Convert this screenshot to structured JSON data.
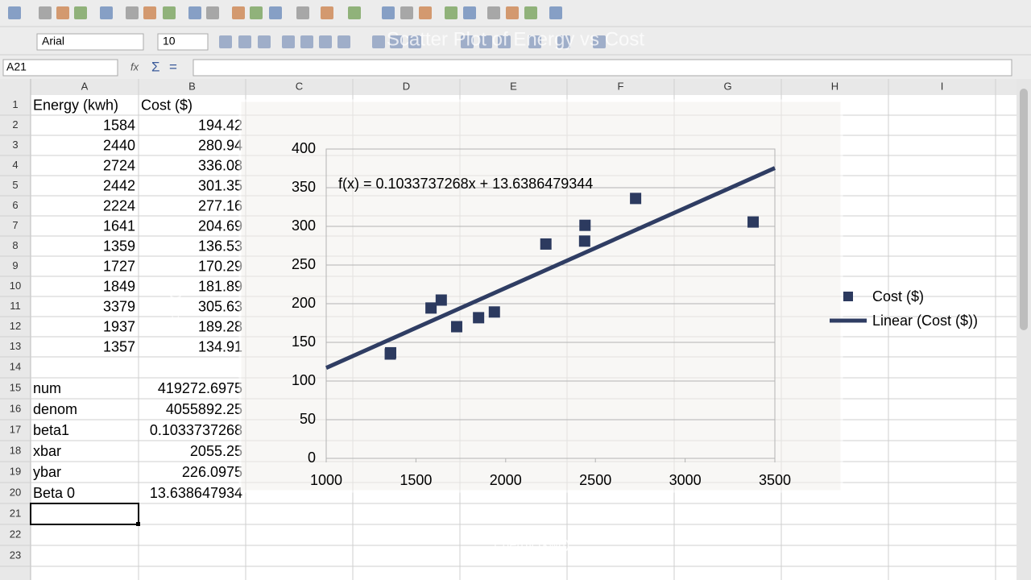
{
  "toolbar": {
    "font_name": "Arial",
    "font_size": "10"
  },
  "formula_bar": {
    "name_box": "A21",
    "symbols": [
      "Σ",
      "="
    ]
  },
  "sheet": {
    "columns": [
      "A",
      "B",
      "C",
      "D",
      "E",
      "F",
      "G",
      "H",
      "I"
    ],
    "row_numbers": [
      1,
      2,
      3,
      4,
      5,
      6,
      7,
      8,
      9,
      10,
      11,
      12,
      13,
      14,
      15,
      16,
      17,
      18,
      19,
      20,
      21,
      22,
      23
    ],
    "rows": [
      [
        "Energy (kwh)",
        "Cost ($)"
      ],
      [
        1584,
        194.42
      ],
      [
        2440,
        280.94
      ],
      [
        2724,
        336.08
      ],
      [
        2442,
        301.35
      ],
      [
        2224,
        277.16
      ],
      [
        1641,
        204.69
      ],
      [
        1359,
        136.53
      ],
      [
        1727,
        170.29
      ],
      [
        1849,
        181.89
      ],
      [
        3379,
        305.63
      ],
      [
        1937,
        189.28
      ],
      [
        1357,
        134.91
      ],
      null,
      [
        "num",
        419272.6975
      ],
      [
        "denom",
        4055892.25
      ],
      [
        "beta1",
        0.1033737268
      ],
      [
        "xbar",
        2055.25
      ],
      [
        "ybar",
        226.0975
      ],
      [
        "Beta 0",
        13.638647934
      ]
    ],
    "selected_cell": "A21"
  },
  "chart_data": {
    "type": "scatter",
    "ghost_title": "Scatter Plot of Energy vs Cost",
    "ghost_x_label": "Energy (kwh)",
    "ghost_y_label": "Cost ($)",
    "x": [
      1584,
      2440,
      2724,
      2442,
      2224,
      1641,
      1359,
      1727,
      1849,
      3379,
      1937,
      1357
    ],
    "series": [
      {
        "name": "Cost ($)",
        "color": "#2c3a5f",
        "values": [
          194.42,
          280.94,
          336.08,
          301.35,
          277.16,
          204.69,
          136.53,
          170.29,
          181.89,
          305.63,
          189.28,
          134.91
        ]
      }
    ],
    "trendline": {
      "name": "Linear (Cost ($))",
      "color": "#2f3d63",
      "slope": 0.1033737268,
      "intercept": 13.6386479344,
      "equation": "f(x) = 0.1033737268x + 13.6386479344"
    },
    "xlim": [
      1000,
      3500
    ],
    "xticks": [
      1000,
      1500,
      2000,
      2500,
      3000,
      3500
    ],
    "ylim": [
      0,
      400
    ],
    "yticks": [
      0,
      50,
      100,
      150,
      200,
      250,
      300,
      350,
      400
    ],
    "grid": true
  }
}
